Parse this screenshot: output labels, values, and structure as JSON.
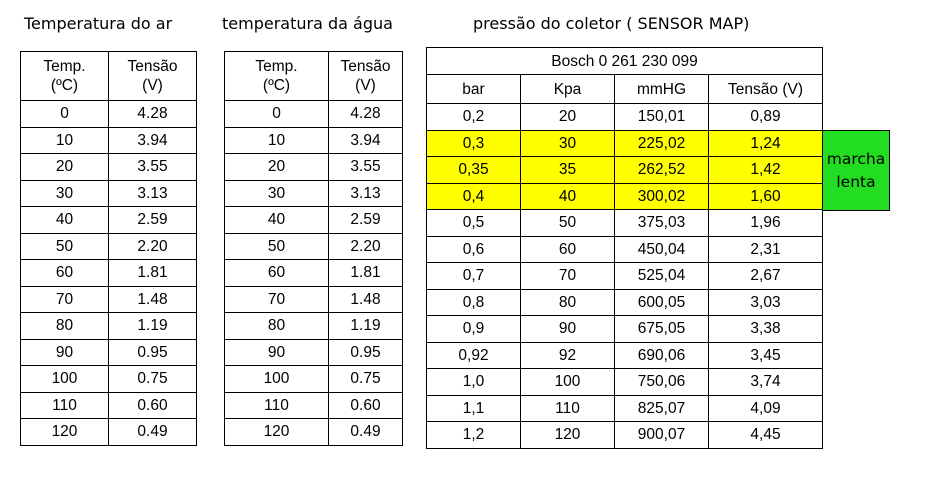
{
  "titles": {
    "ar": "Temperatura do ar",
    "agua": "temperatura da água",
    "map": "pressão do coletor ( SENSOR MAP)"
  },
  "temp_headers": [
    "Temp.\n(ºC)",
    "Tensão\n(V)"
  ],
  "temp_ar_rows": [
    [
      "0",
      "4.28"
    ],
    [
      "10",
      "3.94"
    ],
    [
      "20",
      "3.55"
    ],
    [
      "30",
      "3.13"
    ],
    [
      "40",
      "2.59"
    ],
    [
      "50",
      "2.20"
    ],
    [
      "60",
      "1.81"
    ],
    [
      "70",
      "1.48"
    ],
    [
      "80",
      "1.19"
    ],
    [
      "90",
      "0.95"
    ],
    [
      "100",
      "0.75"
    ],
    [
      "110",
      "0.60"
    ],
    [
      "120",
      "0.49"
    ]
  ],
  "temp_agua_rows": [
    [
      "0",
      "4.28"
    ],
    [
      "10",
      "3.94"
    ],
    [
      "20",
      "3.55"
    ],
    [
      "30",
      "3.13"
    ],
    [
      "40",
      "2.59"
    ],
    [
      "50",
      "2.20"
    ],
    [
      "60",
      "1.81"
    ],
    [
      "70",
      "1.48"
    ],
    [
      "80",
      "1.19"
    ],
    [
      "90",
      "0.95"
    ],
    [
      "100",
      "0.75"
    ],
    [
      "110",
      "0.60"
    ],
    [
      "120",
      "0.49"
    ]
  ],
  "map": {
    "sensor": "Bosch 0 261 230 099",
    "headers": [
      "bar",
      "Kpa",
      "mmHG",
      "Tensão (V)"
    ],
    "rows": [
      {
        "cells": [
          "0,2",
          "20",
          "150,01",
          "0,89"
        ],
        "highlight": false
      },
      {
        "cells": [
          "0,3",
          "30",
          "225,02",
          "1,24"
        ],
        "highlight": true
      },
      {
        "cells": [
          "0,35",
          "35",
          "262,52",
          "1,42"
        ],
        "highlight": true
      },
      {
        "cells": [
          "0,4",
          "40",
          "300,02",
          "1,60"
        ],
        "highlight": true
      },
      {
        "cells": [
          "0,5",
          "50",
          "375,03",
          "1,96"
        ],
        "highlight": false
      },
      {
        "cells": [
          "0,6",
          "60",
          "450,04",
          "2,31"
        ],
        "highlight": false
      },
      {
        "cells": [
          "0,7",
          "70",
          "525,04",
          "2,67"
        ],
        "highlight": false
      },
      {
        "cells": [
          "0,8",
          "80",
          "600,05",
          "3,03"
        ],
        "highlight": false
      },
      {
        "cells": [
          "0,9",
          "90",
          "675,05",
          "3,38"
        ],
        "highlight": false
      },
      {
        "cells": [
          "0,92",
          "92",
          "690,06",
          "3,45"
        ],
        "highlight": false
      },
      {
        "cells": [
          "1,0",
          "100",
          "750,06",
          "3,74"
        ],
        "highlight": false
      },
      {
        "cells": [
          "1,1",
          "110",
          "825,07",
          "4,09"
        ],
        "highlight": false
      },
      {
        "cells": [
          "1,2",
          "120",
          "900,07",
          "4,45"
        ],
        "highlight": false
      }
    ],
    "highlight_color": "#ffff00"
  },
  "idle_label": [
    "marcha",
    "lenta"
  ],
  "idle_color": "#22dd22"
}
